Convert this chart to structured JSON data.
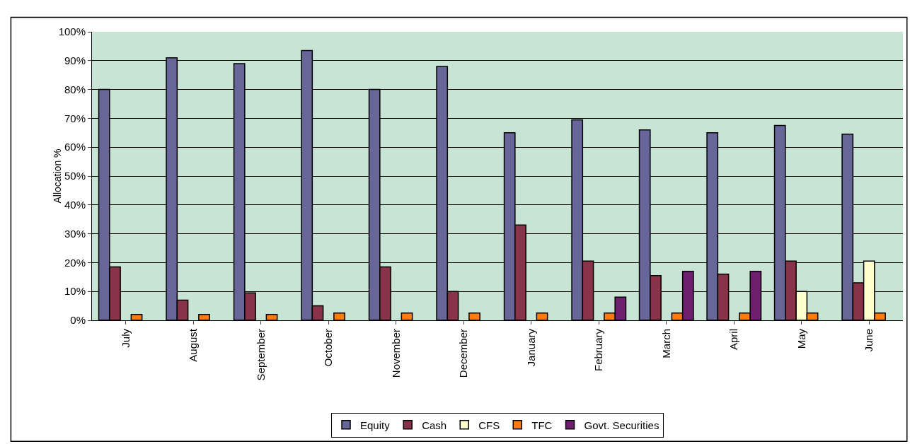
{
  "chart_data": {
    "type": "bar",
    "ylabel": "Allocation %",
    "categories": [
      "July",
      "August",
      "September",
      "October",
      "November",
      "December",
      "January",
      "February",
      "March",
      "April",
      "May",
      "June"
    ],
    "series": [
      {
        "name": "Equity",
        "color": "#666699",
        "values": [
          80,
          91,
          89,
          93.5,
          80,
          88,
          65,
          69.5,
          66,
          65,
          67.5,
          64.5
        ]
      },
      {
        "name": "Cash",
        "color": "#883349",
        "values": [
          18.5,
          7,
          9.5,
          5,
          18.5,
          10,
          33,
          20.5,
          15.5,
          16,
          20.5,
          13
        ]
      },
      {
        "name": "CFS",
        "color": "#ffffcc",
        "values": [
          null,
          null,
          null,
          null,
          null,
          null,
          null,
          null,
          null,
          null,
          10,
          20.5
        ]
      },
      {
        "name": "TFC",
        "color": "#ff7c10",
        "values": [
          2,
          2,
          2,
          2.5,
          2.5,
          2.5,
          2.5,
          2.5,
          2.5,
          2.5,
          2.5,
          2.5
        ]
      },
      {
        "name": "Govt. Securities",
        "color": "#6e1f6e",
        "values": [
          null,
          null,
          null,
          null,
          null,
          null,
          null,
          8,
          17,
          17,
          null,
          null
        ]
      }
    ],
    "ylim": [
      0,
      100
    ],
    "yticks": [
      {
        "value": 0,
        "label": "0%"
      },
      {
        "value": 10,
        "label": "10%"
      },
      {
        "value": 20,
        "label": "20%"
      },
      {
        "value": 30,
        "label": "30%"
      },
      {
        "value": 40,
        "label": "40%"
      },
      {
        "value": 50,
        "label": "50%"
      },
      {
        "value": 60,
        "label": "60%"
      },
      {
        "value": 70,
        "label": "70%"
      },
      {
        "value": 80,
        "label": "80%"
      },
      {
        "value": 90,
        "label": "90%"
      },
      {
        "value": 100,
        "label": "100%"
      }
    ],
    "grid": "y",
    "legend": "bottom"
  }
}
